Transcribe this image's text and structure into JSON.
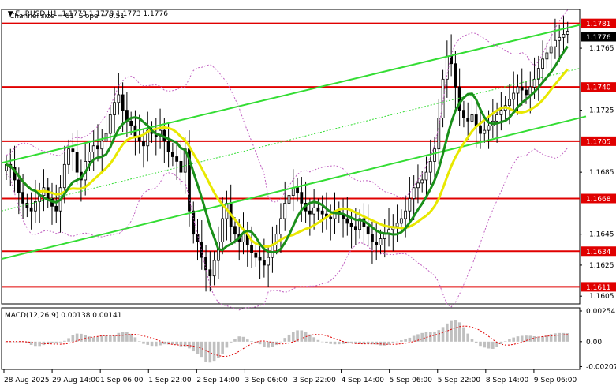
{
  "header": {
    "symbol": "EURUSD,H1",
    "quote": "1.1773 1.1778 1.1773 1.1776",
    "channel_info": "Channel size = 61  Slope = 0.51"
  },
  "chart_data": {
    "type": "candlestick",
    "symbol": "EURUSD",
    "timeframe": "H1",
    "ohlc": {
      "open": 1.1773,
      "high": 1.1778,
      "low": 1.1773,
      "close": 1.1776
    },
    "price_axis": {
      "ylim": [
        1.16,
        1.179
      ],
      "ticks": [
        "1.1765",
        "1.1725",
        "1.1685",
        "1.1645",
        "1.1625",
        "1.1605"
      ]
    },
    "time_labels": [
      "28 Aug 2025",
      "29 Aug 14:00",
      "1 Sep 06:00",
      "1 Sep 22:00",
      "2 Sep 14:00",
      "3 Sep 06:00",
      "3 Sep 22:00",
      "4 Sep 14:00",
      "5 Sep 06:00",
      "5 Sep 22:00",
      "8 Sep 14:00",
      "9 Sep 06:00"
    ],
    "support_resistance_levels": [
      {
        "value": 1.1781,
        "label": "1.1781",
        "color": "#e00000"
      },
      {
        "value": 1.174,
        "label": "1.1740",
        "color": "#e00000"
      },
      {
        "value": 1.1705,
        "label": "1.1705",
        "color": "#e00000"
      },
      {
        "value": 1.1668,
        "label": "1.1668",
        "color": "#e00000"
      },
      {
        "value": 1.1634,
        "label": "1.1634",
        "color": "#e00000"
      },
      {
        "value": 1.1611,
        "label": "1.1611",
        "color": "#e00000"
      }
    ],
    "current_price": {
      "value": 1.1776,
      "label": "1.1776"
    },
    "close_series": [
      1.169,
      1.1688,
      1.168,
      1.1672,
      1.1665,
      1.1662,
      1.166,
      1.1666,
      1.167,
      1.1675,
      1.1668,
      1.1663,
      1.166,
      1.1675,
      1.169,
      1.17,
      1.1698,
      1.1685,
      1.168,
      1.1692,
      1.1698,
      1.1702,
      1.17,
      1.1705,
      1.171,
      1.1722,
      1.173,
      1.1735,
      1.1725,
      1.1718,
      1.1715,
      1.1708,
      1.1705,
      1.1702,
      1.1712,
      1.171,
      1.1708,
      1.1712,
      1.1705,
      1.1698,
      1.1695,
      1.1692,
      1.1685,
      1.17,
      1.166,
      1.1645,
      1.164,
      1.163,
      1.1622,
      1.1618,
      1.1628,
      1.164,
      1.1655,
      1.1665,
      1.165,
      1.1645,
      1.164,
      1.1645,
      1.1638,
      1.1633,
      1.163,
      1.1628,
      1.1625,
      1.163,
      1.1638,
      1.1645,
      1.1655,
      1.1665,
      1.167,
      1.1675,
      1.1672,
      1.1665,
      1.166,
      1.1658,
      1.1662,
      1.166,
      1.1658,
      1.1656,
      1.1655,
      1.166,
      1.1658,
      1.1655,
      1.1652,
      1.165,
      1.1648,
      1.1655,
      1.165,
      1.1645,
      1.164,
      1.1638,
      1.1642,
      1.1645,
      1.1648,
      1.165,
      1.1652,
      1.1655,
      1.166,
      1.1668,
      1.1675,
      1.1678,
      1.168,
      1.1685,
      1.1692,
      1.17,
      1.172,
      1.1745,
      1.176,
      1.1755,
      1.174,
      1.1725,
      1.172,
      1.1718,
      1.1722,
      1.1715,
      1.171,
      1.1712,
      1.1715,
      1.1718,
      1.1722,
      1.1725,
      1.1728,
      1.1732,
      1.1736,
      1.174,
      1.1738,
      1.1735,
      1.174,
      1.1745,
      1.1752,
      1.1758,
      1.1762,
      1.1766,
      1.177,
      1.1772,
      1.1774,
      1.1776
    ],
    "moving_averages": [
      {
        "color": "#1a8f1a",
        "period": "fast"
      },
      {
        "color": "#e8e800",
        "period": "slow"
      }
    ],
    "bollinger_color": "#c060c0",
    "channel_color": "#33dd33",
    "macd": {
      "label": "MACD(12,26,9) 0.00138 0.00141",
      "ticks": [
        "0.00254",
        "0.00",
        "-0.00207"
      ],
      "ylim": [
        -0.0023,
        0.0028
      ]
    }
  }
}
